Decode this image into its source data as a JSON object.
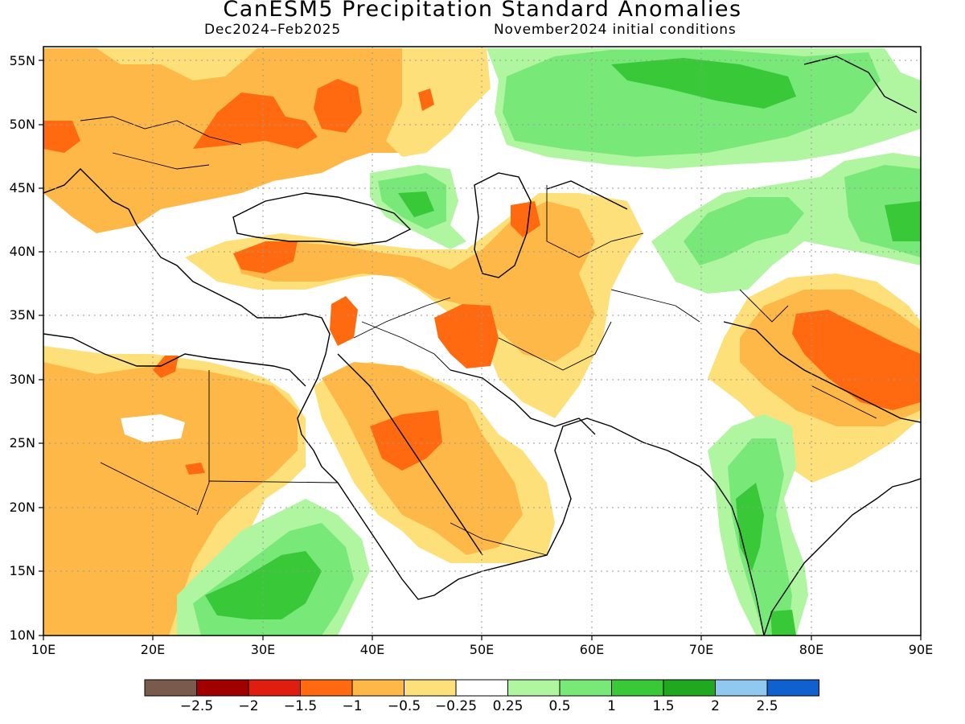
{
  "title": "CanESM5 Precipitation Standard Anomalies",
  "subtitle_left": "Dec2024–Feb2025",
  "subtitle_right": "November2024 initial conditions",
  "lat_labels": [
    "55N",
    "50N",
    "45N",
    "40N",
    "35N",
    "30N",
    "25N",
    "20N",
    "15N",
    "10N"
  ],
  "lon_labels": [
    "10E",
    "20E",
    "30E",
    "40E",
    "50E",
    "60E",
    "70E",
    "80E",
    "90E"
  ],
  "colorbar": {
    "colors": [
      "#7a5a4a",
      "#a00000",
      "#e01e10",
      "#ff6a10",
      "#fdb848",
      "#fde07a",
      "#ffffff",
      "#b0f5a0",
      "#78e878",
      "#38c838",
      "#20a820",
      "#90c8f0",
      "#1060d0"
    ],
    "labels": [
      "−2.5",
      "−2",
      "−1.5",
      "−1",
      "−0.5",
      "−0.25",
      "0.25",
      "0.5",
      "1",
      "1.5",
      "2",
      "2.5"
    ]
  },
  "map_colors": {
    "dry_mod": "#fdb848",
    "dry_light": "#fde07a",
    "dry_strong": "#ff6a10",
    "wet_light": "#b0f5a0",
    "wet_mod": "#78e878",
    "wet_strong": "#38c838",
    "wet_vstrong": "#20a820"
  }
}
